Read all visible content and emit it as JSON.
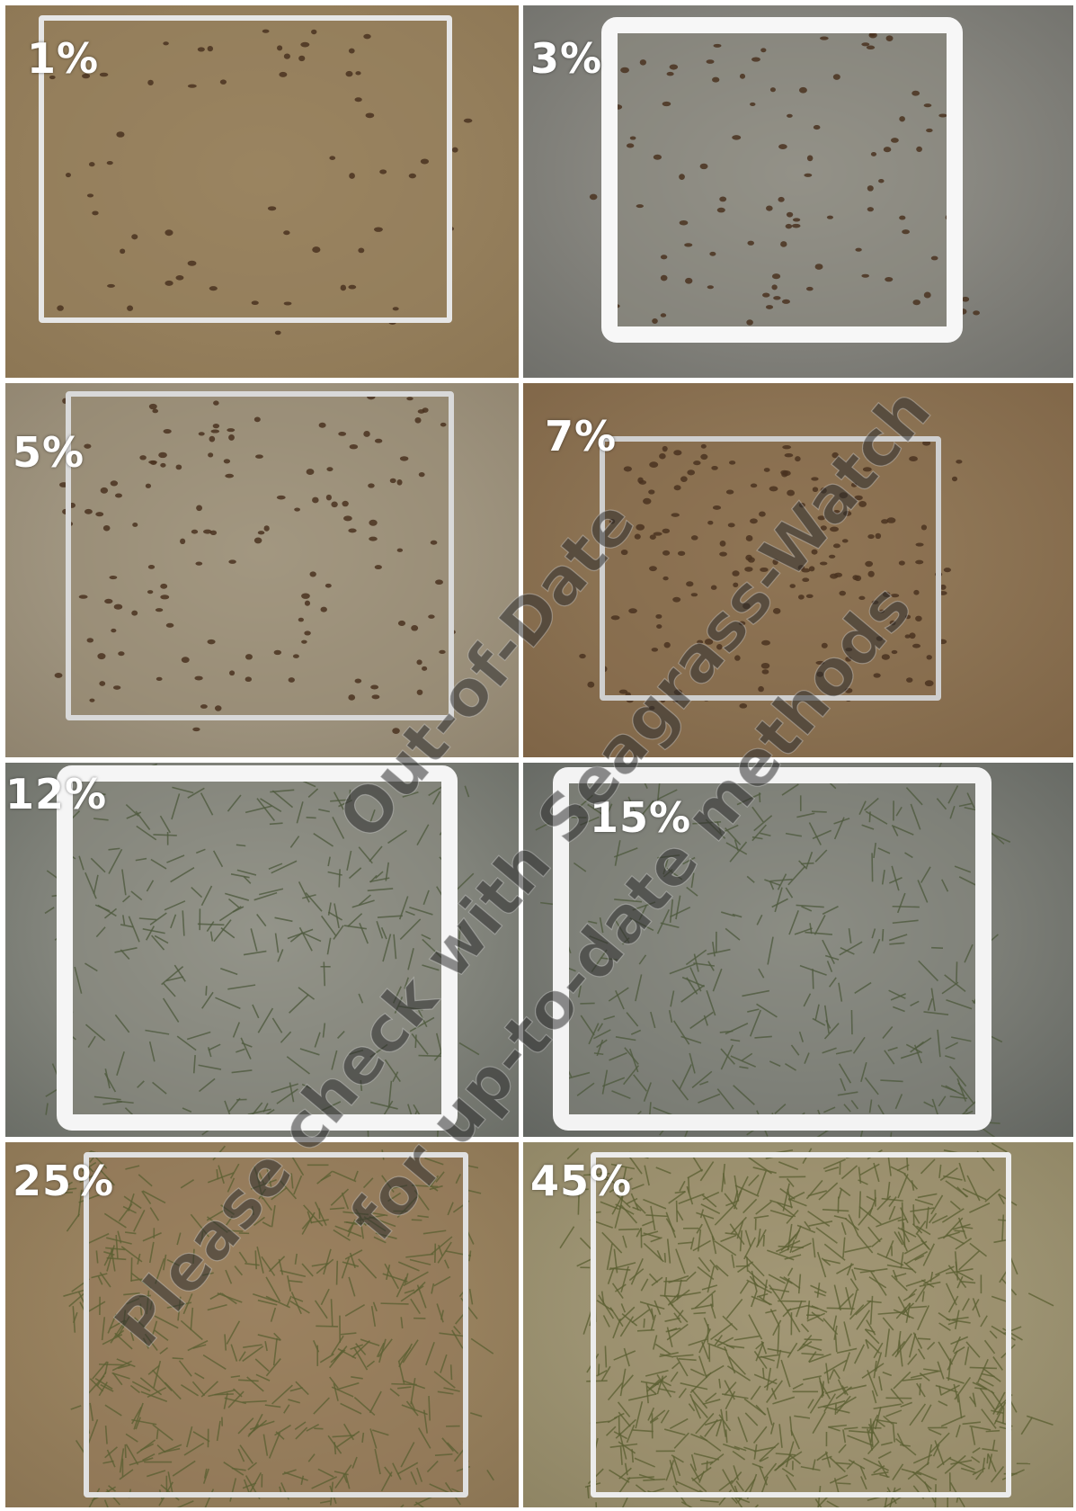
{
  "panels": [
    {
      "label": "1%",
      "coverage_percent": 1,
      "palette": {
        "bg": "#8c7654",
        "bg2": "#a08a66",
        "frame": "#e6e6e6",
        "inner": "#967f5c"
      }
    },
    {
      "label": "3%",
      "coverage_percent": 3,
      "palette": {
        "bg": "#6f6f6a",
        "bg2": "#9c9a92",
        "frame": "#f7f7f7",
        "inner": "#8d8a80"
      }
    },
    {
      "label": "5%",
      "coverage_percent": 5,
      "palette": {
        "bg": "#8f836e",
        "bg2": "#b0a792",
        "frame": "#d9d9d9",
        "inner": "#978a72"
      }
    },
    {
      "label": "7%",
      "coverage_percent": 7,
      "palette": {
        "bg": "#7e6446",
        "bg2": "#98805f",
        "frame": "#cfcfcf",
        "inner": "#876c4d"
      }
    },
    {
      "label": "12%",
      "coverage_percent": 12,
      "palette": {
        "bg": "#6a6d66",
        "bg2": "#9fa096",
        "frame": "#f5f5f5",
        "inner": "#8a8a7f"
      }
    },
    {
      "label": "15%",
      "coverage_percent": 15,
      "palette": {
        "bg": "#626560",
        "bg2": "#95968d",
        "frame": "#f3f3f3",
        "inner": "#84857b"
      }
    },
    {
      "label": "25%",
      "coverage_percent": 25,
      "palette": {
        "bg": "#8a7453",
        "bg2": "#a58e69",
        "frame": "#e0e0e0",
        "inner": "#93795a"
      }
    },
    {
      "label": "45%",
      "coverage_percent": 45,
      "palette": {
        "bg": "#8e8463",
        "bg2": "#aca383",
        "frame": "#ececec",
        "inner": "#9a8e6c"
      }
    }
  ],
  "watermark": {
    "line1": "Out-of-Date",
    "line2": "Please check with Seagrass-Watch",
    "line3": "for up-to-date methods"
  }
}
